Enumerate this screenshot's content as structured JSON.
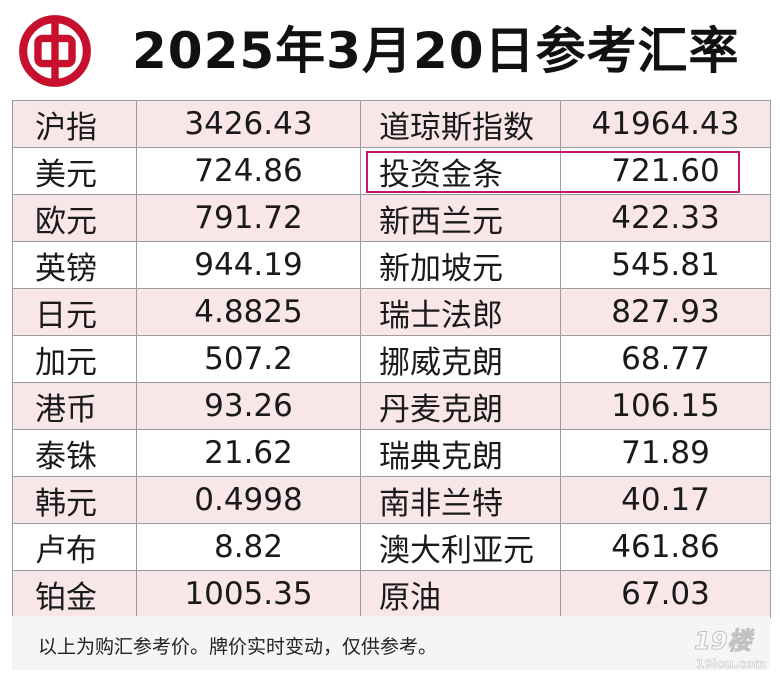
{
  "header": {
    "title": "2025年3月20日参考汇率",
    "logo_icon": "bank-of-china-logo-icon",
    "logo_color": "#c8102e"
  },
  "rows": [
    {
      "left_name": "沪指",
      "left_value": "3426.43",
      "right_name": "道琼斯指数",
      "right_value": "41964.43"
    },
    {
      "left_name": "美元",
      "left_value": "724.86",
      "right_name": "投资金条",
      "right_value": "721.60"
    },
    {
      "left_name": "欧元",
      "left_value": "791.72",
      "right_name": "新西兰元",
      "right_value": "422.33"
    },
    {
      "left_name": "英镑",
      "left_value": "944.19",
      "right_name": "新加坡元",
      "right_value": "545.81"
    },
    {
      "left_name": "日元",
      "left_value": "4.8825",
      "right_name": "瑞士法郎",
      "right_value": "827.93"
    },
    {
      "left_name": "加元",
      "left_value": "507.2",
      "right_name": "挪威克朗",
      "right_value": "68.77"
    },
    {
      "left_name": "港币",
      "left_value": "93.26",
      "right_name": "丹麦克朗",
      "right_value": "106.15"
    },
    {
      "left_name": "泰铢",
      "left_value": "21.62",
      "right_name": "瑞典克朗",
      "right_value": "71.89"
    },
    {
      "left_name": "韩元",
      "left_value": "0.4998",
      "right_name": "南非兰特",
      "right_value": "40.17"
    },
    {
      "left_name": "卢布",
      "left_value": "8.82",
      "right_name": "澳大利亚元",
      "right_value": "461.86"
    },
    {
      "left_name": "铂金",
      "left_value": "1005.35",
      "right_name": "原油",
      "right_value": "67.03"
    }
  ],
  "footer": {
    "note": "以上为购汇参考价。牌价实时变动，仅供参考。"
  },
  "watermark": {
    "text_top": "19楼",
    "text_bottom": "19lou.com",
    "icon": "19lou-watermark-icon"
  },
  "colors": {
    "row_shade": "#f8e6e8",
    "highlight_border": "#c0186a",
    "grid": "#9c9c9c"
  }
}
